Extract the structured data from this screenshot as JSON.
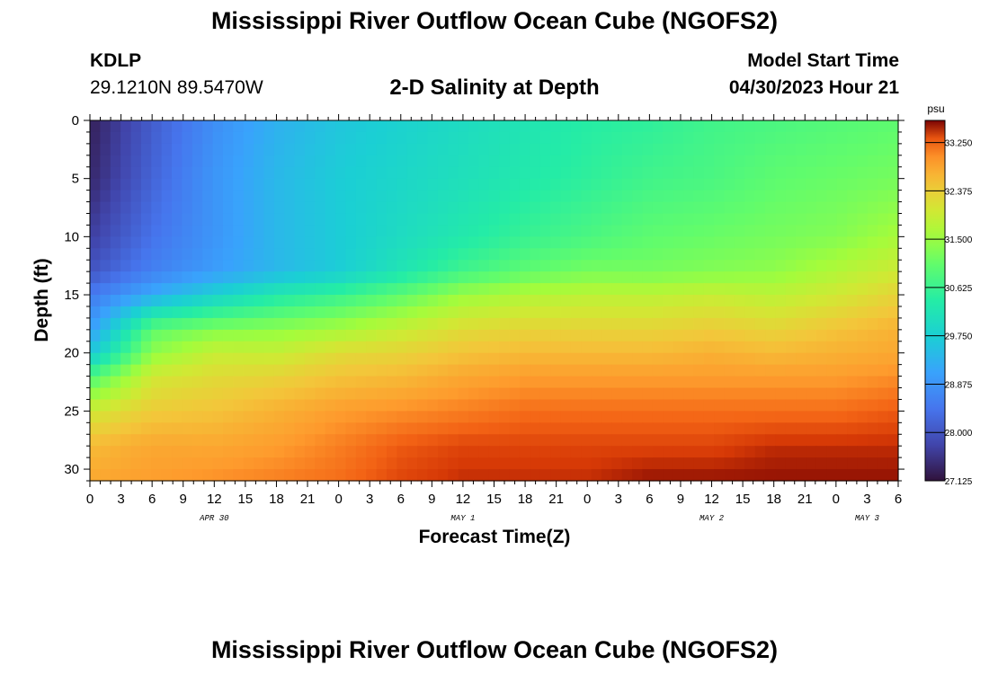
{
  "header": {
    "title": "Mississippi River Outflow Ocean Cube (NGOFS2)",
    "station_id": "KDLP",
    "station_coords": "29.1210N  89.5470W",
    "subtitle": "2-D Salinity at Depth",
    "model_start_label": "Model Start Time",
    "model_start_value": "04/30/2023 Hour 21"
  },
  "footer": {
    "title": "Mississippi River Outflow Ocean Cube (NGOFS2)"
  },
  "chart_data": {
    "type": "heatmap",
    "title": "2-D Salinity at Depth",
    "xlabel": "Forecast Time(Z)",
    "ylabel": "Depth (ft)",
    "x_unit": "hours from 2023-04-30 00Z",
    "xlim": [
      0,
      78
    ],
    "ylim": [
      31,
      0
    ],
    "x_ticks": [
      0,
      3,
      6,
      9,
      12,
      15,
      18,
      21,
      24,
      27,
      30,
      33,
      36,
      39,
      42,
      45,
      48,
      51,
      54,
      57,
      60,
      63,
      66,
      69,
      72,
      75,
      78
    ],
    "x_tick_labels": [
      "0",
      "3",
      "6",
      "9",
      "12",
      "15",
      "18",
      "21",
      "0",
      "3",
      "6",
      "9",
      "12",
      "15",
      "18",
      "21",
      "0",
      "3",
      "6",
      "9",
      "12",
      "15",
      "18",
      "21",
      "0",
      "3",
      "6"
    ],
    "day_labels": [
      {
        "label": "APR 30",
        "x": 12
      },
      {
        "label": "MAY 1",
        "x": 36
      },
      {
        "label": "MAY 2",
        "x": 60
      },
      {
        "label": "MAY 3",
        "x": 75
      }
    ],
    "y_ticks": [
      0,
      5,
      10,
      15,
      20,
      25,
      30
    ],
    "y_tick_labels": [
      "0",
      "5",
      "10",
      "15",
      "20",
      "25",
      "30"
    ],
    "colorbar": {
      "unit": "psu",
      "min": 27.125,
      "max": 33.65,
      "ticks": [
        27.125,
        28.0,
        28.875,
        29.75,
        30.625,
        31.5,
        32.375,
        33.25
      ],
      "tick_labels": [
        "27.125",
        "28.000",
        "28.875",
        "29.750",
        "30.625",
        "31.500",
        "32.375",
        "33.250"
      ]
    },
    "grid": false,
    "time_hours": [
      0,
      6,
      12,
      18,
      24,
      30,
      36,
      42,
      48,
      54,
      60,
      66,
      72,
      78
    ],
    "depth_ft": [
      0,
      5,
      10,
      13,
      15,
      18,
      20,
      22,
      25,
      28,
      31
    ],
    "salinity_psu": [
      [
        27.3,
        28.1,
        28.8,
        29.3,
        29.6,
        29.8,
        30.0,
        30.2,
        30.4,
        30.5,
        30.7,
        30.8,
        30.9,
        31.0
      ],
      [
        27.4,
        28.2,
        28.9,
        29.4,
        29.7,
        29.9,
        30.1,
        30.3,
        30.5,
        30.7,
        30.8,
        31.0,
        31.1,
        31.2
      ],
      [
        27.7,
        28.4,
        28.9,
        29.4,
        29.7,
        30.0,
        30.3,
        30.6,
        30.8,
        31.0,
        31.1,
        31.2,
        31.3,
        31.6
      ],
      [
        28.0,
        28.6,
        29.0,
        29.4,
        29.7,
        30.2,
        30.7,
        31.0,
        31.2,
        31.2,
        31.3,
        31.4,
        31.7,
        32.0
      ],
      [
        28.5,
        29.2,
        29.8,
        30.3,
        30.6,
        31.0,
        31.5,
        31.7,
        31.8,
        31.8,
        31.9,
        31.8,
        32.0,
        32.3
      ],
      [
        29.0,
        31.0,
        31.3,
        31.4,
        31.6,
        31.9,
        32.2,
        32.3,
        32.3,
        32.3,
        32.4,
        32.3,
        32.5,
        32.7
      ],
      [
        29.6,
        31.4,
        31.9,
        31.9,
        32.2,
        32.3,
        32.5,
        32.6,
        32.6,
        32.6,
        32.7,
        32.6,
        32.7,
        32.8
      ],
      [
        30.8,
        32.0,
        32.2,
        32.3,
        32.5,
        32.6,
        32.8,
        32.9,
        32.9,
        32.9,
        32.9,
        32.9,
        32.9,
        33.0
      ],
      [
        32.0,
        32.4,
        32.5,
        32.7,
        32.9,
        33.0,
        33.1,
        33.2,
        33.2,
        33.2,
        33.2,
        33.2,
        33.2,
        33.3
      ],
      [
        32.6,
        32.8,
        32.8,
        32.9,
        33.1,
        33.3,
        33.4,
        33.4,
        33.4,
        33.4,
        33.4,
        33.5,
        33.5,
        33.5
      ],
      [
        32.8,
        32.9,
        33.0,
        33.1,
        33.2,
        33.4,
        33.5,
        33.5,
        33.5,
        33.6,
        33.6,
        33.6,
        33.6,
        33.6
      ]
    ]
  }
}
